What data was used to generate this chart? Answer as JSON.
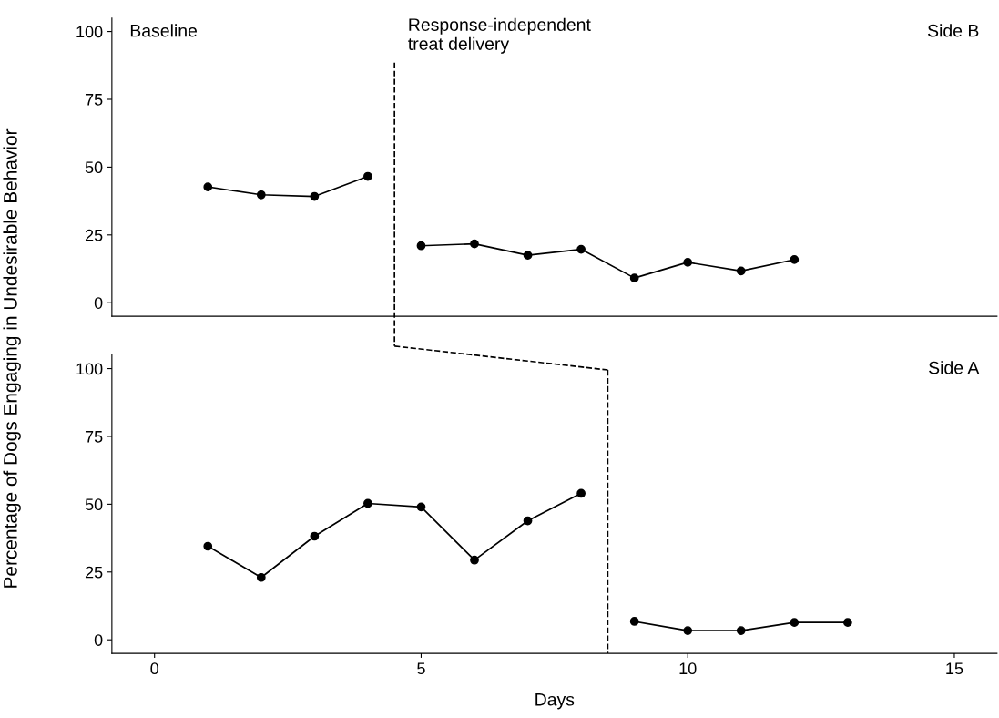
{
  "chart_data": [
    {
      "type": "line",
      "ylabel": "Percentage of Dogs Engaging in Undesirable Behavior",
      "xlim": [
        -0.8,
        15.8
      ],
      "ylim": [
        -5,
        105
      ],
      "yticks": [
        0,
        25,
        50,
        75,
        100
      ],
      "tick_labels": "y",
      "marker": "circle",
      "line_style": "solid",
      "grid": false,
      "legend": false,
      "series": [
        {
          "color": "#000000",
          "x": [
            1,
            2,
            3,
            4
          ],
          "values": [
            42.7,
            39.8,
            39.2,
            46.6
          ]
        },
        {
          "color": "#000000",
          "x": [
            5,
            6,
            7,
            8,
            9,
            10,
            11,
            12
          ],
          "values": [
            21,
            21.7,
            17.5,
            19.7,
            9.1,
            14.9,
            11.7,
            15.9
          ]
        }
      ],
      "ref_lines": [
        {
          "axis": "x",
          "value": 4.5,
          "label": "Response-independent\ntreat delivery",
          "line_style": "dashed",
          "color": "#000000"
        }
      ],
      "annotations": [
        "Baseline",
        "Side B"
      ]
    },
    {
      "type": "line",
      "xlabel": "Days",
      "xlim": [
        -0.8,
        15.8
      ],
      "xticks": [
        0,
        5,
        10,
        15
      ],
      "ylim": [
        -5,
        105
      ],
      "yticks": [
        0,
        25,
        50,
        75,
        100
      ],
      "marker": "circle",
      "line_style": "solid",
      "grid": false,
      "legend": false,
      "series": [
        {
          "color": "#000000",
          "x": [
            1,
            2,
            3,
            4,
            5,
            6,
            7,
            8
          ],
          "values": [
            34.5,
            23,
            38.2,
            50.3,
            49,
            29.4,
            43.9,
            54
          ]
        },
        {
          "color": "#000000",
          "x": [
            9,
            10,
            11,
            12,
            13
          ],
          "values": [
            6.8,
            3.4,
            3.4,
            6.4,
            6.4
          ]
        }
      ],
      "ref_lines": [
        {
          "axis": "x",
          "value": 8.5,
          "line_style": "dashed",
          "color": "#000000"
        }
      ],
      "annotations": [
        "Side A"
      ]
    }
  ]
}
